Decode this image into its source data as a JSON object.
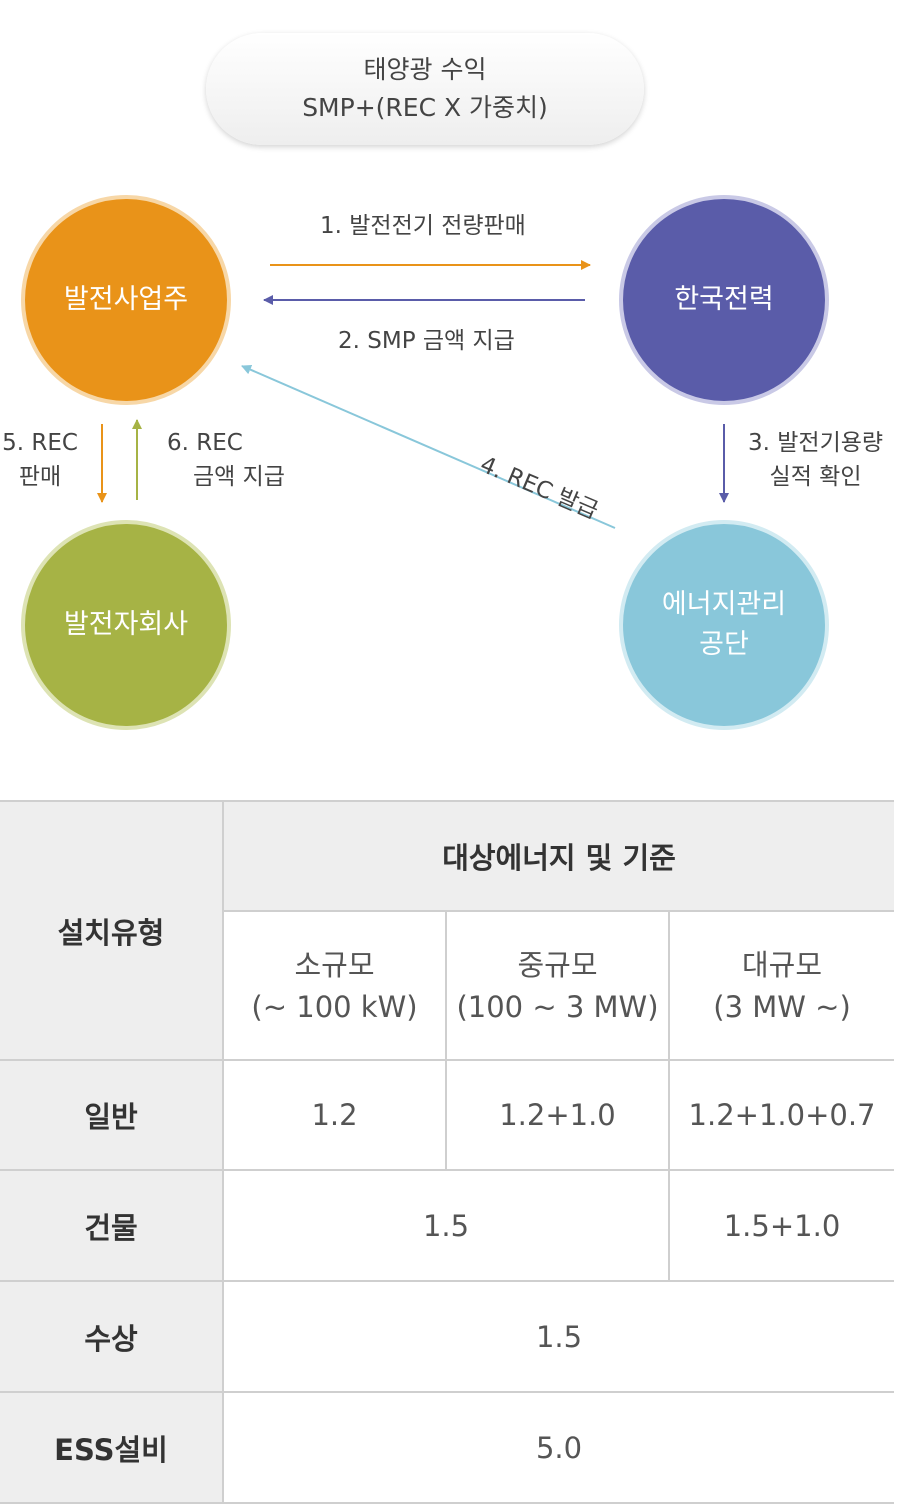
{
  "header": {
    "line1": "태양광 수익",
    "line2": "SMP+(REC X 가중치)"
  },
  "nodes": {
    "generator": "발전사업주",
    "kepco": "한국전력",
    "subsidiary": "발전자회사",
    "energy_agency_line1": "에너지관리",
    "energy_agency_line2": "공단"
  },
  "flows": {
    "f1": "1. 발전전기 전량판매",
    "f2": "2. SMP 금액 지급",
    "f3_line1": "3. 발전기용량",
    "f3_line2": "실적 확인",
    "f4": "4. REC 발급",
    "f5_line1": "5. REC",
    "f5_line2": "판매",
    "f6_line1": "6. REC",
    "f6_line2": "금액 지급"
  },
  "colors": {
    "orange": "#e99319",
    "purple": "#5a5ca9",
    "green": "#a6b345",
    "sky": "#89c7da"
  },
  "table": {
    "col_install_type": "설치유형",
    "col_target": "대상에너지 및 기준",
    "small_name": "소규모",
    "small_range": "(~ 100 kW)",
    "medium_name": "중규모",
    "medium_range": "(100 ~ 3 MW)",
    "large_name": "대규모",
    "large_range": "(3 MW ~)",
    "rows": [
      {
        "type": "일반",
        "small": "1.2",
        "medium": "1.2+1.0",
        "large": "1.2+1.0+0.7"
      },
      {
        "type": "건물",
        "small_medium": "1.5",
        "large": "1.5+1.0"
      },
      {
        "type": "수상",
        "all": "1.5"
      },
      {
        "type": "ESS설비",
        "all": "5.0"
      }
    ]
  }
}
